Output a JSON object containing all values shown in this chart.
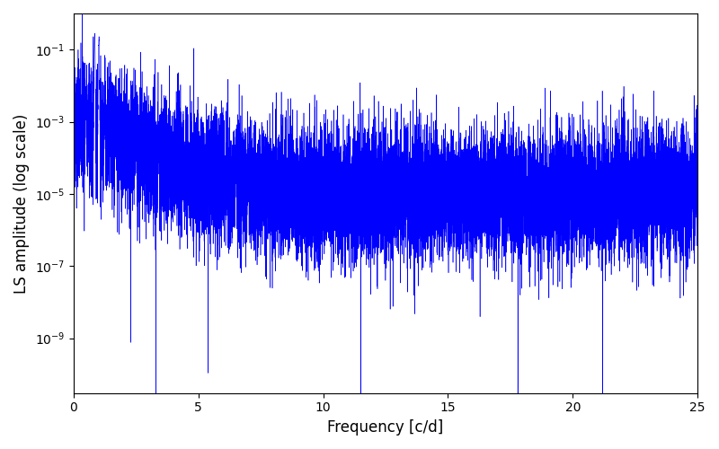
{
  "xlabel": "Frequency [c/d]",
  "ylabel": "LS amplitude (log scale)",
  "xlim": [
    0,
    25
  ],
  "ylim": [
    3e-11,
    1.0
  ],
  "line_color": "#0000ff",
  "line_width": 0.4,
  "background_color": "#ffffff",
  "seed": 42,
  "n_points": 15000,
  "freq_max": 25.0,
  "peak_freq": 0.85,
  "peak_amp": 0.28,
  "peak2_freq": 1.02,
  "peak2_amp": 0.18,
  "noise_floor_base": 1e-05,
  "decay_scale": 1.5
}
